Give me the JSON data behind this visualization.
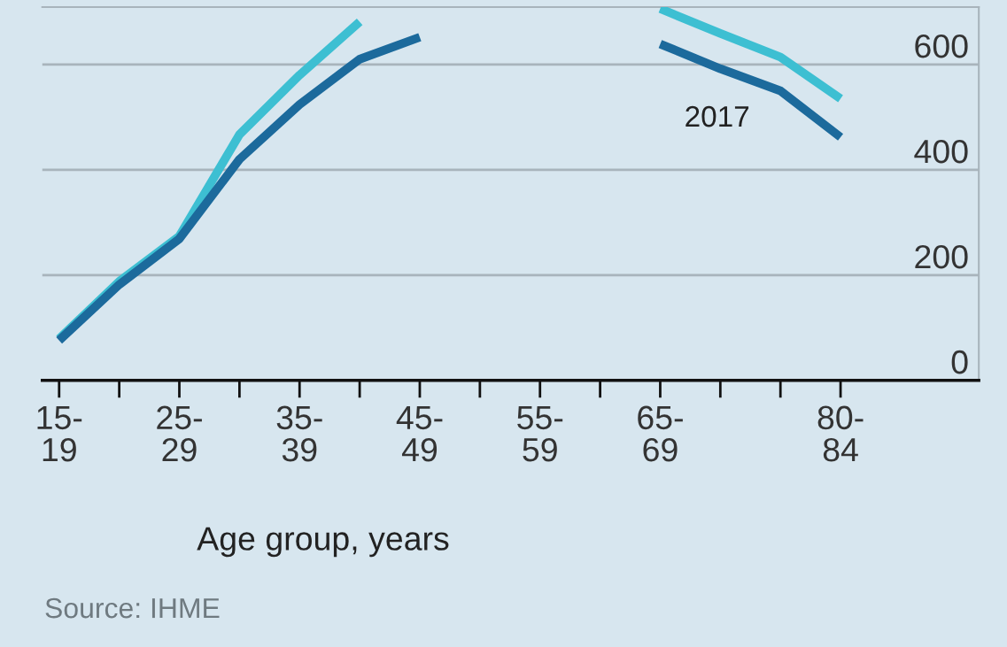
{
  "chart_data": {
    "type": "line",
    "xlabel": "Age group, years",
    "categories": [
      "15-19",
      null,
      "25-29",
      null,
      "35-39",
      null,
      "45-49",
      null,
      "55-59",
      null,
      "65-69",
      null,
      null,
      "80-84"
    ],
    "series": [
      {
        "color": "#3dbfd2",
        "values": [
          79,
          188,
          274,
          467,
          580,
          681,
          null,
          null,
          null,
          null,
          706,
          659,
          614,
          535
        ]
      },
      {
        "name": "2017",
        "color": "#1c6a9c",
        "values": [
          76,
          182,
          269,
          420,
          524,
          610,
          652,
          null,
          null,
          null,
          639,
          592,
          550,
          462
        ]
      }
    ],
    "ylim": [
      0,
      709
    ],
    "yticks": [
      0,
      200,
      400,
      600
    ],
    "grid": "y",
    "legend": false,
    "marker": "none",
    "line_style": "solid",
    "annotations": [
      "Source: IHME"
    ]
  }
}
